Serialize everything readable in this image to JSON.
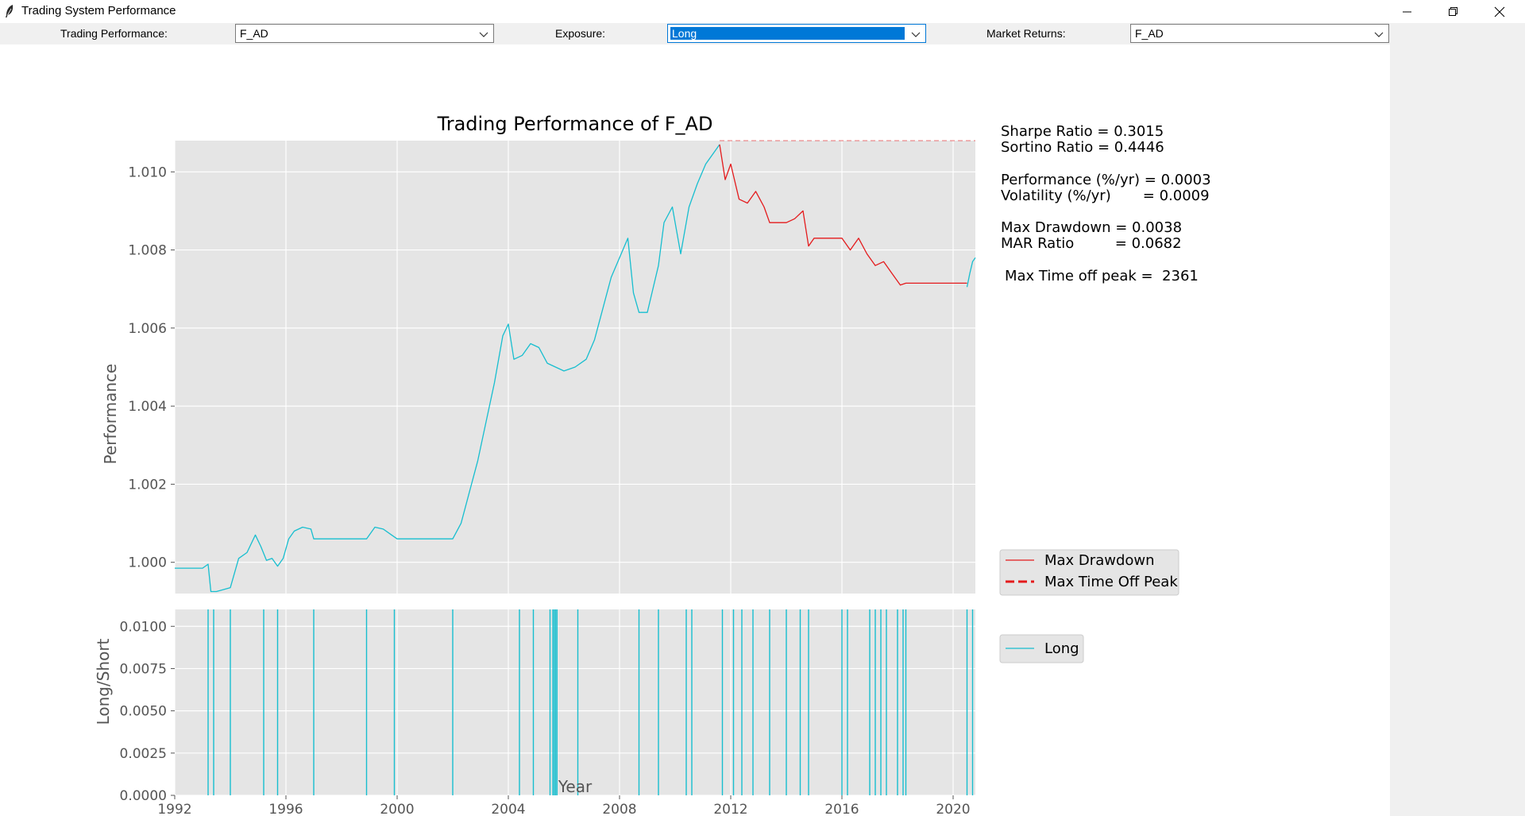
{
  "window": {
    "title": "Trading System Performance"
  },
  "toolbar": {
    "performance_label": "Trading Performance:",
    "performance_value": "F_AD",
    "exposure_label": "Exposure:",
    "exposure_value": "Long",
    "market_label": "Market Returns:",
    "market_value": "F_AD"
  },
  "stats": {
    "sharpe": "Sharpe Ratio = 0.3015",
    "sortino": "Sortino Ratio = 0.4446",
    "performance": "Performance (%/yr) = 0.0003",
    "volatility": "Volatility (%/yr)       = 0.0009",
    "max_drawdown": "Max Drawdown = 0.0038",
    "mar": "MAR Ratio         = 0.0682",
    "time_off_peak": "Max Time off peak =  2361"
  },
  "colors": {
    "long": "#17becf",
    "drawdown": "#e41a1c",
    "plot_bg": "#e5e5e5",
    "selection": "#0078d7"
  },
  "chart_data": [
    {
      "type": "line",
      "title": "Trading Performance of F_AD",
      "xlabel": "",
      "ylabel": "Performance",
      "xlim": [
        1992,
        2020.8
      ],
      "ylim": [
        0.9992,
        1.0108
      ],
      "x_ticks": [
        1992,
        1996,
        2000,
        2004,
        2008,
        2012,
        2016,
        2020
      ],
      "y_ticks": [
        1.0,
        1.002,
        1.004,
        1.006,
        1.008,
        1.01
      ],
      "y_tick_labels": [
        "1.000",
        "1.002",
        "1.004",
        "1.006",
        "1.008",
        "1.010"
      ],
      "grid": true,
      "legend": {
        "placement": "right",
        "entries": [
          "Max Drawdown",
          "Max Time Off Peak"
        ]
      },
      "peak_level": 1.0108,
      "series": [
        {
          "name": "",
          "color": "#17becf",
          "x": [
            1992.0,
            1993.0,
            1993.2,
            1993.3,
            1993.5,
            1994.0,
            1994.3,
            1994.6,
            1994.9,
            1995.1,
            1995.3,
            1995.5,
            1995.7,
            1995.9,
            1996.1,
            1996.3,
            1996.6,
            1996.9,
            1997.0,
            1998.9,
            1999.2,
            1999.5,
            1999.8,
            2000.0,
            2002.0,
            2002.3,
            2002.6,
            2002.9,
            2003.2,
            2003.5,
            2003.8,
            2004.0,
            2004.2,
            2004.5,
            2004.8,
            2005.1,
            2005.4,
            2005.7,
            2006.0,
            2006.4,
            2006.8,
            2007.1,
            2007.4,
            2007.7,
            2008.0,
            2008.3,
            2008.5,
            2008.7,
            2009.0,
            2009.4,
            2009.6,
            2009.9,
            2010.2,
            2010.5,
            2010.8,
            2011.1,
            2011.4,
            2011.6
          ],
          "y": [
            0.99985,
            0.99985,
            0.99995,
            0.99925,
            0.99925,
            0.99935,
            1.0001,
            1.00025,
            1.0007,
            1.0004,
            1.00005,
            1.0001,
            0.9999,
            1.0001,
            1.0006,
            1.0008,
            1.0009,
            1.00085,
            1.0006,
            1.0006,
            1.0009,
            1.00085,
            1.0007,
            1.0006,
            1.0006,
            1.001,
            1.0018,
            1.0026,
            1.0036,
            1.0046,
            1.0058,
            1.0061,
            1.0052,
            1.0053,
            1.0056,
            1.0055,
            1.0051,
            1.005,
            1.0049,
            1.005,
            1.0052,
            1.0057,
            1.0065,
            1.0073,
            1.0078,
            1.0083,
            1.0069,
            1.0064,
            1.0064,
            1.0076,
            1.0087,
            1.0091,
            1.0079,
            1.0091,
            1.0097,
            1.0102,
            1.0105,
            1.0107
          ]
        },
        {
          "name": "Max Drawdown",
          "color": "#e41a1c",
          "x": [
            2011.6,
            2011.8,
            2012.0,
            2012.3,
            2012.6,
            2012.9,
            2013.2,
            2013.4,
            2014.0,
            2014.3,
            2014.6,
            2014.8,
            2015.0,
            2016.0,
            2016.3,
            2016.6,
            2016.9,
            2017.2,
            2017.5,
            2017.8,
            2018.1,
            2018.3,
            2020.5
          ],
          "y": [
            1.0107,
            1.0098,
            1.0102,
            1.0093,
            1.0092,
            1.0095,
            1.0091,
            1.0087,
            1.0087,
            1.0088,
            1.009,
            1.0081,
            1.0083,
            1.0083,
            1.008,
            1.0083,
            1.0079,
            1.0076,
            1.0077,
            1.0074,
            1.0071,
            1.00715,
            1.00715
          ]
        },
        {
          "name": "",
          "color": "#17becf",
          "x": [
            2020.5,
            2020.6,
            2020.7,
            2020.8
          ],
          "y": [
            1.00705,
            1.0074,
            1.0077,
            1.0078
          ]
        }
      ]
    },
    {
      "type": "bar",
      "title": "",
      "xlabel": "Year",
      "ylabel": "Long/Short",
      "xlim": [
        1992,
        2020.8
      ],
      "ylim": [
        0,
        0.011
      ],
      "x_ticks": [
        1992,
        1996,
        2000,
        2004,
        2008,
        2012,
        2016,
        2020
      ],
      "y_ticks": [
        0,
        0.0025,
        0.005,
        0.0075,
        0.01
      ],
      "y_tick_labels": [
        "0.0000",
        "0.0025",
        "0.0050",
        "0.0075",
        "0.0100"
      ],
      "grid": true,
      "legend": {
        "placement": "right",
        "entries": [
          "Long"
        ]
      },
      "series": [
        {
          "name": "Long",
          "color": "#17becf",
          "x": [
            1993.2,
            1993.4,
            1994.0,
            1995.2,
            1995.7,
            1997.0,
            1998.9,
            1999.9,
            2002.0,
            2004.4,
            2004.9,
            2005.5,
            2005.6,
            2005.65,
            2005.7,
            2005.75,
            2006.5,
            2008.7,
            2009.4,
            2010.4,
            2010.6,
            2011.7,
            2012.1,
            2012.4,
            2012.8,
            2013.4,
            2014.0,
            2014.5,
            2014.8,
            2016.0,
            2016.2,
            2017.0,
            2017.2,
            2017.4,
            2017.6,
            2018.0,
            2018.2,
            2018.3,
            2020.5,
            2020.7
          ],
          "values": [
            0.011,
            0.011,
            0.011,
            0.011,
            0.011,
            0.011,
            0.011,
            0.011,
            0.011,
            0.011,
            0.011,
            0.011,
            0.011,
            0.011,
            0.011,
            0.011,
            0.011,
            0.011,
            0.011,
            0.011,
            0.011,
            0.011,
            0.011,
            0.011,
            0.011,
            0.011,
            0.011,
            0.011,
            0.011,
            0.011,
            0.011,
            0.011,
            0.011,
            0.011,
            0.011,
            0.011,
            0.011,
            0.011,
            0.011,
            0.011
          ]
        }
      ]
    }
  ]
}
